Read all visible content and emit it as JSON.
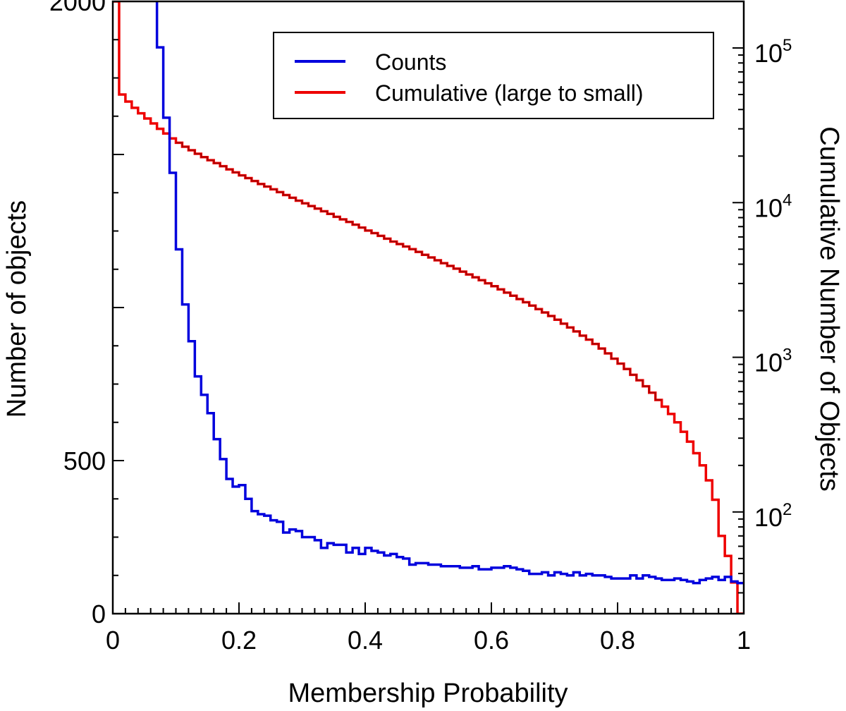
{
  "chart_data": {
    "type": "line",
    "title": "",
    "xlabel": "Membership Probability",
    "ylabel": "Number of objects",
    "y2label": "Cumulative Number of Objects",
    "xlim": [
      0,
      1
    ],
    "ylim": [
      0,
      2000
    ],
    "y2lim": [
      22,
      200000
    ],
    "y2scale": "log",
    "x_ticks": [
      0,
      0.2,
      0.4,
      0.6,
      0.8,
      1
    ],
    "x_tick_labels": [
      "0",
      "0.2",
      "0.4",
      "0.6",
      "0.8",
      "1"
    ],
    "y_tick_labels": [
      {
        "value": 2000,
        "label": "2000"
      },
      {
        "value": 500,
        "label": "500"
      },
      {
        "value": 0,
        "label": "0"
      }
    ],
    "y2_tick_labels": [
      {
        "value": 100000,
        "base": "10",
        "exp": "5"
      },
      {
        "value": 10000,
        "base": "10",
        "exp": "4"
      },
      {
        "value": 1000,
        "base": "10",
        "exp": "3"
      },
      {
        "value": 100,
        "base": "10",
        "exp": "2"
      }
    ],
    "legend": {
      "position": "top-right",
      "entries": [
        {
          "label": "Counts",
          "color": "#0000dd"
        },
        {
          "label": "Cumulative (large to small)",
          "color": "#ee0000"
        }
      ]
    },
    "bin_width": 0.01,
    "series": [
      {
        "name": "Counts",
        "axis": "left",
        "color": "#0000dd",
        "note": "bins from 0.01 to 0.07 exceed the y-axis maximum (clipped)",
        "bin_starts": [
          0.06,
          0.07,
          0.08,
          0.09,
          0.1,
          0.11,
          0.12,
          0.13,
          0.14,
          0.15,
          0.16,
          0.17,
          0.18,
          0.19,
          0.2,
          0.21,
          0.22,
          0.23,
          0.24,
          0.25,
          0.26,
          0.27,
          0.28,
          0.29,
          0.3,
          0.31,
          0.32,
          0.33,
          0.34,
          0.35,
          0.36,
          0.37,
          0.38,
          0.39,
          0.4,
          0.41,
          0.42,
          0.43,
          0.44,
          0.45,
          0.46,
          0.47,
          0.48,
          0.49,
          0.5,
          0.51,
          0.52,
          0.53,
          0.54,
          0.55,
          0.56,
          0.57,
          0.58,
          0.59,
          0.6,
          0.61,
          0.62,
          0.63,
          0.64,
          0.65,
          0.66,
          0.67,
          0.68,
          0.69,
          0.7,
          0.71,
          0.72,
          0.73,
          0.74,
          0.75,
          0.76,
          0.77,
          0.78,
          0.79,
          0.8,
          0.81,
          0.82,
          0.83,
          0.84,
          0.85,
          0.86,
          0.87,
          0.88,
          0.89,
          0.9,
          0.91,
          0.92,
          0.93,
          0.94,
          0.95,
          0.96,
          0.97,
          0.98,
          0.99
        ],
        "values": [
          3000,
          1850,
          1620,
          1440,
          1190,
          1010,
          890,
          775,
          715,
          655,
          570,
          505,
          440,
          415,
          420,
          375,
          335,
          325,
          320,
          305,
          300,
          265,
          275,
          270,
          250,
          250,
          240,
          215,
          230,
          225,
          225,
          200,
          215,
          195,
          215,
          205,
          200,
          190,
          195,
          185,
          180,
          160,
          165,
          165,
          160,
          160,
          155,
          155,
          155,
          150,
          150,
          155,
          145,
          145,
          150,
          150,
          155,
          150,
          145,
          140,
          130,
          130,
          135,
          125,
          135,
          130,
          125,
          135,
          125,
          130,
          125,
          125,
          120,
          115,
          115,
          115,
          125,
          115,
          125,
          120,
          115,
          110,
          110,
          115,
          110,
          105,
          100,
          110,
          115,
          120,
          110,
          120,
          105,
          100
        ]
      },
      {
        "name": "Cumulative (large to small)",
        "axis": "right",
        "color": "#ee0000",
        "bin_starts": [
          0.0,
          0.01,
          0.02,
          0.03,
          0.04,
          0.05,
          0.06,
          0.07,
          0.08,
          0.09,
          0.1,
          0.11,
          0.12,
          0.13,
          0.14,
          0.15,
          0.16,
          0.17,
          0.18,
          0.19,
          0.2,
          0.21,
          0.22,
          0.23,
          0.24,
          0.25,
          0.26,
          0.27,
          0.28,
          0.29,
          0.3,
          0.31,
          0.32,
          0.33,
          0.34,
          0.35,
          0.36,
          0.37,
          0.38,
          0.39,
          0.4,
          0.41,
          0.42,
          0.43,
          0.44,
          0.45,
          0.46,
          0.47,
          0.48,
          0.49,
          0.5,
          0.51,
          0.52,
          0.53,
          0.54,
          0.55,
          0.56,
          0.57,
          0.58,
          0.59,
          0.6,
          0.61,
          0.62,
          0.63,
          0.64,
          0.65,
          0.66,
          0.67,
          0.68,
          0.69,
          0.7,
          0.71,
          0.72,
          0.73,
          0.74,
          0.75,
          0.76,
          0.77,
          0.78,
          0.79,
          0.8,
          0.81,
          0.82,
          0.83,
          0.84,
          0.85,
          0.86,
          0.87,
          0.88,
          0.89,
          0.9,
          0.91,
          0.92,
          0.93,
          0.94,
          0.95,
          0.96,
          0.97,
          0.98,
          0.99
        ],
        "values": [
          200000,
          50000,
          45000,
          41000,
          37800,
          35000,
          32500,
          30000,
          28000,
          26000,
          24400,
          23000,
          21800,
          20700,
          19700,
          18800,
          18000,
          17200,
          16400,
          15700,
          15000,
          14400,
          13800,
          13200,
          12700,
          12200,
          11700,
          11200,
          10750,
          10300,
          9900,
          9500,
          9150,
          8800,
          8450,
          8100,
          7800,
          7500,
          7200,
          6900,
          6600,
          6350,
          6100,
          5850,
          5600,
          5400,
          5200,
          5000,
          4800,
          4600,
          4420,
          4240,
          4060,
          3900,
          3740,
          3580,
          3430,
          3290,
          3150,
          3010,
          2880,
          2750,
          2620,
          2500,
          2380,
          2270,
          2160,
          2050,
          1950,
          1850,
          1750,
          1650,
          1560,
          1470,
          1380,
          1300,
          1220,
          1140,
          1060,
          980,
          910,
          840,
          770,
          710,
          650,
          590,
          530,
          480,
          430,
          380,
          330,
          285,
          240,
          200,
          160,
          120,
          70,
          52,
          35,
          22
        ]
      }
    ]
  }
}
